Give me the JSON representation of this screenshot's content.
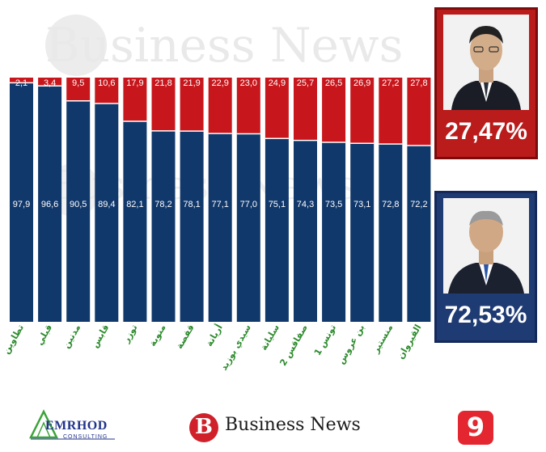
{
  "chart_data": {
    "type": "bar",
    "stacked": true,
    "categories": [
      "تطاوين",
      "قبلي",
      "مدنين",
      "قابس",
      "توزر",
      "منوبة",
      "قفصة",
      "أريانة",
      "سيدي بوزيد",
      "سليانة",
      "صفاقس 2",
      "تونس 1",
      "بن عروس",
      "منستير",
      "القيروان"
    ],
    "series": [
      {
        "values": [
          97.9,
          96.6,
          90.5,
          89.4,
          82.1,
          78.2,
          78.1,
          77.1,
          77.0,
          75.1,
          74.3,
          73.5,
          73.1,
          72.8,
          72.2
        ],
        "labels": [
          "97,9",
          "96,6",
          "90,5",
          "89,4",
          "82,1",
          "78,2",
          "78,1",
          "77,1",
          "77,0",
          "75,1",
          "74,3",
          "73,5",
          "73,1",
          "72,8",
          "72,2"
        ]
      },
      {
        "values": [
          2.1,
          3.4,
          9.5,
          10.6,
          17.9,
          21.8,
          21.9,
          22.9,
          23.0,
          24.9,
          25.7,
          26.5,
          26.9,
          27.2,
          27.8
        ],
        "labels": [
          "2,1",
          "3,4",
          "9,5",
          "10,6",
          "17,9",
          "21,8",
          "21,9",
          "22,9",
          "23,0",
          "24,9",
          "25,7",
          "26,5",
          "26,9",
          "27,2",
          "27,8"
        ]
      }
    ],
    "ylim": [
      0,
      100
    ],
    "grid": false,
    "legend": "none"
  },
  "colors": {
    "blue": "#11386b",
    "red": "#c8171c",
    "label_green": "#2e8b2e"
  },
  "candidates": [
    {
      "percent": "27,47%",
      "color": "#ba1b1b"
    },
    {
      "percent": "72,53%",
      "color": "#1f3b73"
    }
  ],
  "watermark": {
    "text": "Business News"
  },
  "footer": {
    "emrhod_name": "EMRHOD",
    "emrhod_sub": "CONSULTING",
    "bn_letter": "B",
    "bn_text": "Business News",
    "tv_number": "9"
  },
  "icons": [
    "emrhod-logo-icon",
    "business-news-logo-icon",
    "elhiwar-tv9-logo-icon",
    "candidate-photo-icon"
  ]
}
